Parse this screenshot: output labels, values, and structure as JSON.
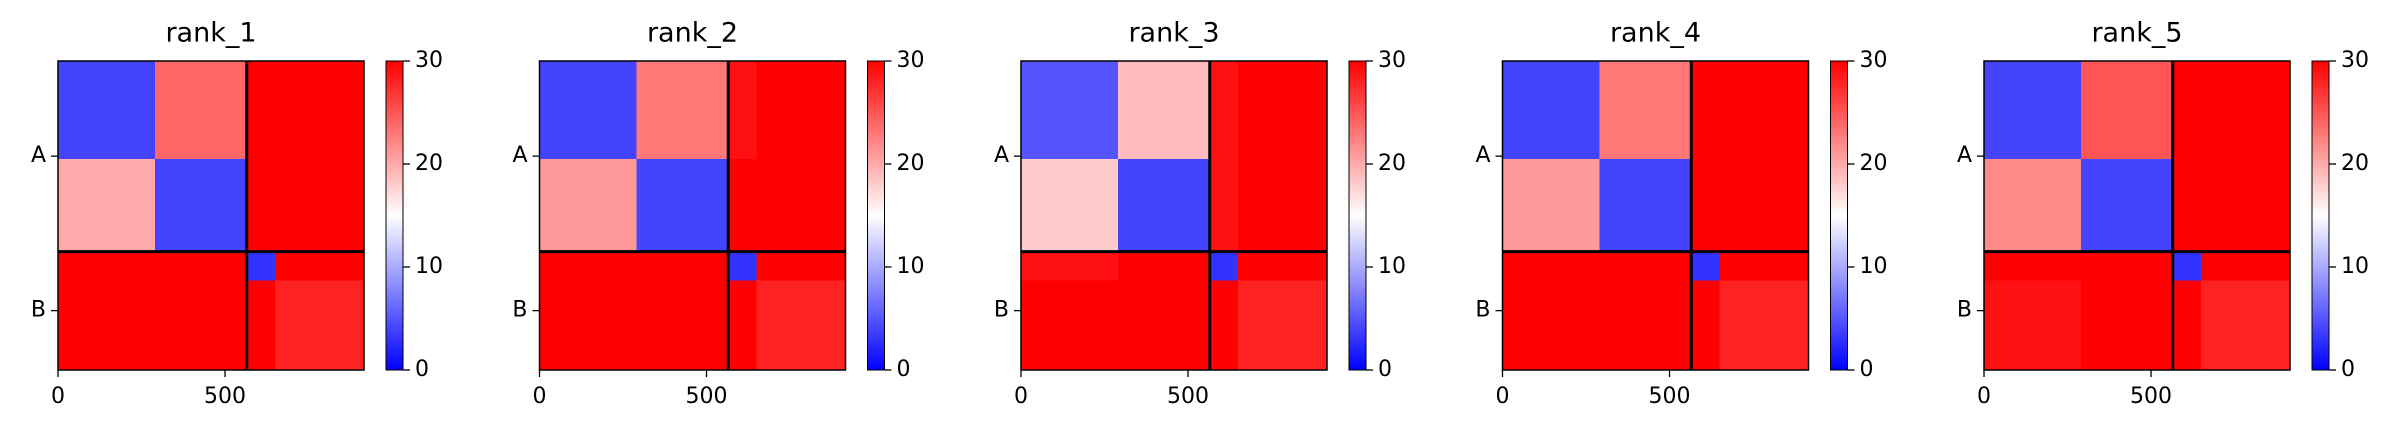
{
  "chart_data": [
    {
      "type": "heatmap",
      "title": "rank_1",
      "bins": [
        0,
        290,
        565,
        650,
        916
      ],
      "values": [
        [
          4,
          24,
          30,
          30
        ],
        [
          20,
          4,
          30,
          30
        ],
        [
          30,
          30,
          3,
          30
        ],
        [
          30,
          30,
          30,
          28
        ]
      ],
      "xlim": [
        0,
        916
      ],
      "ylim": [
        916,
        0
      ],
      "xticks": [
        0,
        500
      ],
      "yticks": [
        {
          "value": 282,
          "label": "A"
        },
        {
          "value": 740,
          "label": "B"
        }
      ],
      "boundaries": [
        565
      ],
      "colormap": [
        "#0000ff",
        "#ffffff",
        "#ff0000"
      ],
      "clim": [
        0,
        30
      ],
      "cticks": [
        0,
        10,
        20,
        30
      ]
    },
    {
      "type": "heatmap",
      "title": "rank_2",
      "bins": [
        0,
        290,
        565,
        650,
        916
      ],
      "values": [
        [
          4,
          23,
          29,
          30
        ],
        [
          21,
          4,
          30,
          30
        ],
        [
          30,
          30,
          3,
          30
        ],
        [
          30,
          30,
          30,
          28
        ]
      ],
      "xlim": [
        0,
        916
      ],
      "ylim": [
        916,
        0
      ],
      "xticks": [
        0,
        500
      ],
      "yticks": [
        {
          "value": 282,
          "label": "A"
        },
        {
          "value": 740,
          "label": "B"
        }
      ],
      "boundaries": [
        565
      ],
      "colormap": [
        "#0000ff",
        "#ffffff",
        "#ff0000"
      ],
      "clim": [
        0,
        30
      ],
      "cticks": [
        0,
        10,
        20,
        30
      ]
    },
    {
      "type": "heatmap",
      "title": "rank_3",
      "bins": [
        0,
        290,
        565,
        650,
        916
      ],
      "values": [
        [
          5,
          19,
          29,
          30
        ],
        [
          18,
          4,
          29,
          30
        ],
        [
          29,
          30,
          3,
          30
        ],
        [
          30,
          30,
          30,
          28
        ]
      ],
      "xlim": [
        0,
        916
      ],
      "ylim": [
        916,
        0
      ],
      "xticks": [
        0,
        500
      ],
      "yticks": [
        {
          "value": 282,
          "label": "A"
        },
        {
          "value": 740,
          "label": "B"
        }
      ],
      "boundaries": [
        565
      ],
      "colormap": [
        "#0000ff",
        "#ffffff",
        "#ff0000"
      ],
      "clim": [
        0,
        30
      ],
      "cticks": [
        0,
        10,
        20,
        30
      ]
    },
    {
      "type": "heatmap",
      "title": "rank_4",
      "bins": [
        0,
        290,
        565,
        650,
        916
      ],
      "values": [
        [
          4,
          23,
          30,
          30
        ],
        [
          21,
          4,
          30,
          30
        ],
        [
          30,
          30,
          3,
          30
        ],
        [
          30,
          30,
          30,
          28
        ]
      ],
      "xlim": [
        0,
        916
      ],
      "ylim": [
        916,
        0
      ],
      "xticks": [
        0,
        500
      ],
      "yticks": [
        {
          "value": 282,
          "label": "A"
        },
        {
          "value": 740,
          "label": "B"
        }
      ],
      "boundaries": [
        565
      ],
      "colormap": [
        "#0000ff",
        "#ffffff",
        "#ff0000"
      ],
      "clim": [
        0,
        30
      ],
      "cticks": [
        0,
        10,
        20,
        30
      ]
    },
    {
      "type": "heatmap",
      "title": "rank_5",
      "bins": [
        0,
        290,
        565,
        650,
        916
      ],
      "values": [
        [
          4,
          25,
          30,
          30
        ],
        [
          22,
          4,
          30,
          30
        ],
        [
          30,
          30,
          3,
          30
        ],
        [
          29,
          30,
          30,
          28
        ]
      ],
      "xlim": [
        0,
        916
      ],
      "ylim": [
        916,
        0
      ],
      "xticks": [
        0,
        500
      ],
      "yticks": [
        {
          "value": 282,
          "label": "A"
        },
        {
          "value": 740,
          "label": "B"
        }
      ],
      "boundaries": [
        565
      ],
      "colormap": [
        "#0000ff",
        "#ffffff",
        "#ff0000"
      ],
      "clim": [
        0,
        30
      ],
      "cticks": [
        0,
        10,
        20,
        30
      ]
    }
  ]
}
